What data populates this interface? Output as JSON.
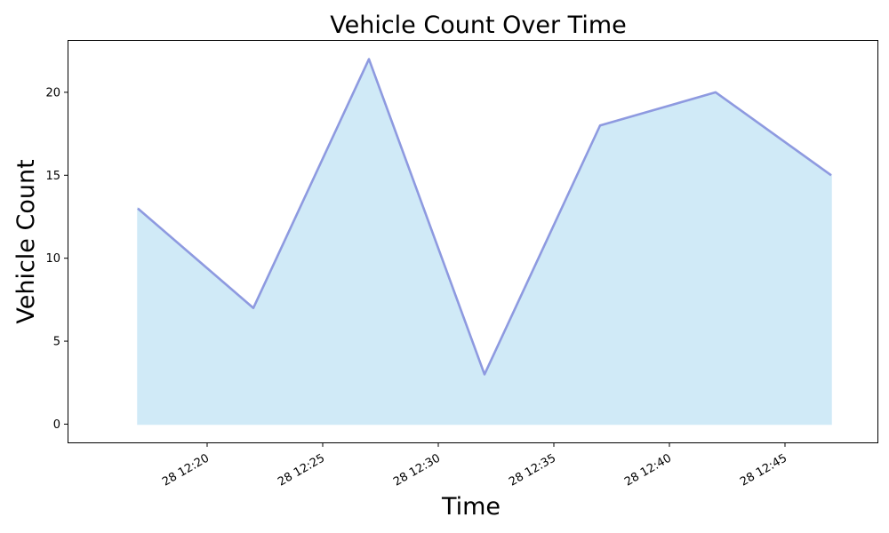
{
  "chart_data": {
    "type": "area",
    "title": "Vehicle Count Over Time",
    "xlabel": "Time",
    "ylabel": "Vehicle Count",
    "x": [
      "28 12:17",
      "28 12:22",
      "28 12:27",
      "28 12:32",
      "28 12:37",
      "28 12:42",
      "28 12:47"
    ],
    "series": [
      {
        "values": [
          13,
          7,
          22,
          3,
          18,
          20,
          15
        ]
      }
    ],
    "xlim": [
      "28 12:14",
      "28 12:49"
    ],
    "ylim": [
      -1.1,
      23.1
    ],
    "x_ticks": [
      "28 12:20",
      "28 12:25",
      "28 12:30",
      "28 12:35",
      "28 12:40",
      "28 12:45"
    ],
    "y_ticks": [
      0,
      5,
      10,
      15,
      20
    ],
    "grid": false,
    "legend": "none",
    "colors": {
      "line": "#8e9ae0",
      "fill": "#d0eaf7",
      "axis": "#000000"
    }
  }
}
